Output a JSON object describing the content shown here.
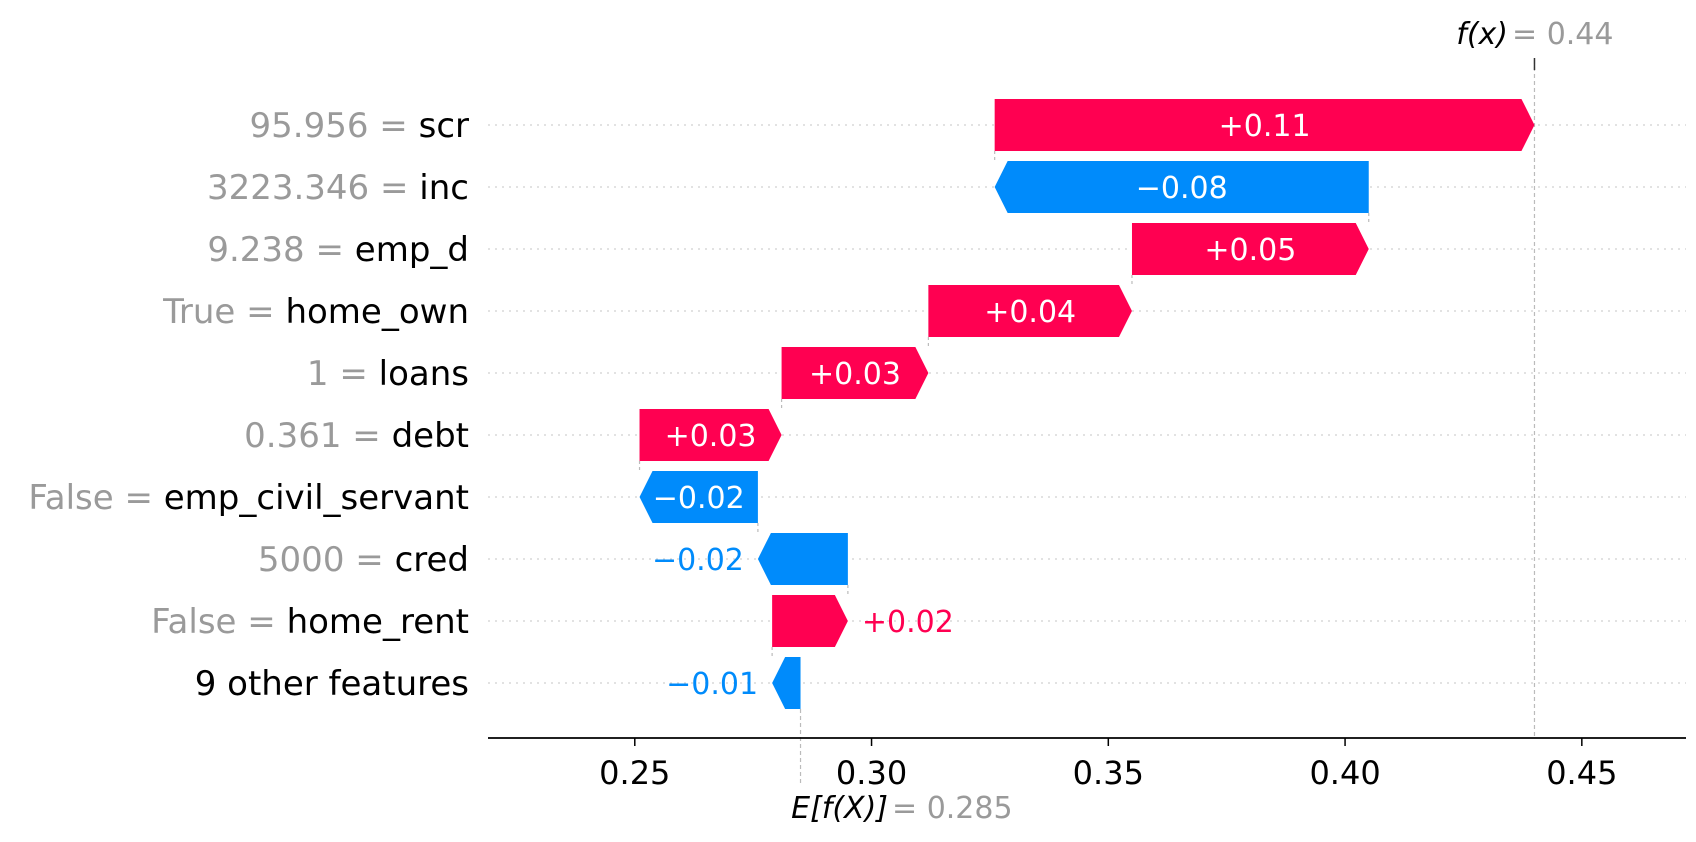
{
  "chart_data": {
    "type": "waterfall",
    "base_value": 0.285,
    "base_label": "E[f(X)]",
    "base_value_text": "0.285",
    "output_value": 0.44,
    "output_label": "f(x)",
    "output_value_text": "0.44",
    "xlim": [
      0.219,
      0.472
    ],
    "xticks": [
      0.25,
      0.3,
      0.35,
      0.4,
      0.45
    ],
    "xtick_labels": [
      "0.25",
      "0.30",
      "0.35",
      "0.40",
      "0.45"
    ],
    "colors": {
      "positive": "#ff0051",
      "negative": "#008bfb",
      "feature_value": "#9a9a9a",
      "feature_name": "#000000"
    },
    "rows": [
      {
        "value": "95.956",
        "feature": "scr",
        "start": 0.326,
        "end": 0.44,
        "label": "+0.11"
      },
      {
        "value": "3223.346",
        "feature": "inc",
        "start": 0.405,
        "end": 0.326,
        "label": "−0.08"
      },
      {
        "value": "9.238",
        "feature": "emp_d",
        "start": 0.355,
        "end": 0.405,
        "label": "+0.05"
      },
      {
        "value": "True",
        "feature": "home_own",
        "start": 0.312,
        "end": 0.355,
        "label": "+0.04"
      },
      {
        "value": "1",
        "feature": "loans",
        "start": 0.281,
        "end": 0.312,
        "label": "+0.03"
      },
      {
        "value": "0.361",
        "feature": "debt",
        "start": 0.251,
        "end": 0.281,
        "label": "+0.03"
      },
      {
        "value": "False",
        "feature": "emp_civil_servant",
        "start": 0.276,
        "end": 0.251,
        "label": "−0.02"
      },
      {
        "value": "5000",
        "feature": "cred",
        "start": 0.295,
        "end": 0.276,
        "label": "−0.02"
      },
      {
        "value": "False",
        "feature": "home_rent",
        "start": 0.279,
        "end": 0.295,
        "label": "+0.02"
      },
      {
        "value": "",
        "feature": "9 other features",
        "start": 0.285,
        "end": 0.279,
        "label": "−0.01"
      }
    ]
  }
}
